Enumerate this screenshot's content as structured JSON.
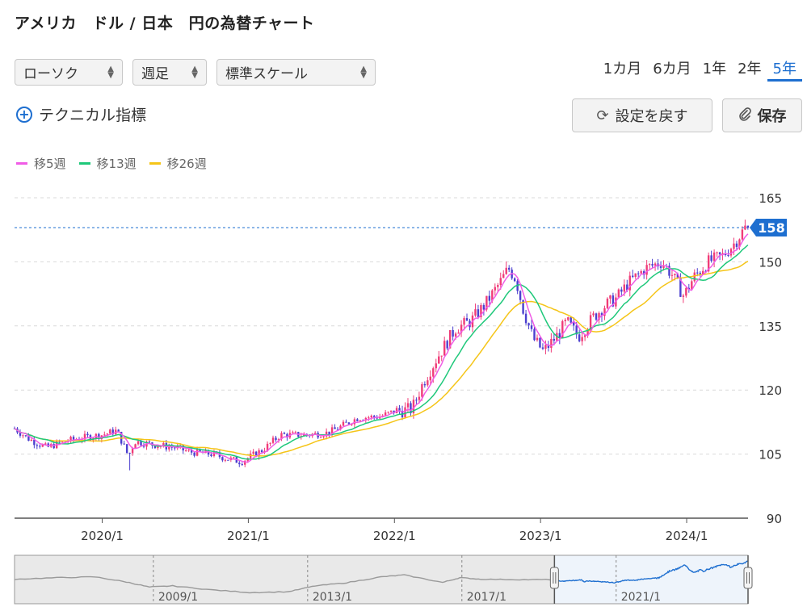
{
  "header": {
    "title": "アメリカ　ドル / 日本　円の為替チャート"
  },
  "controls": {
    "chart_type": "ローソク",
    "interval": "週足",
    "scale": "標準スケール",
    "periods": [
      "1カ月",
      "6カ月",
      "1年",
      "2年",
      "5年"
    ],
    "active_period": "5年",
    "technical_label": "テクニカル指標",
    "reset_label": "設定を戻す",
    "save_label": "保存"
  },
  "colors": {
    "up": "#f03c78",
    "down": "#4b3fcf",
    "ma5": "#f05ce6",
    "ma13": "#1ec87a",
    "ma26": "#f5c518",
    "accent": "#1e6fd0"
  },
  "chart_data": {
    "type": "candlestick",
    "title": "アメリカ　ドル / 日本　円の為替チャート",
    "ylim": [
      90,
      165
    ],
    "y_ticks": [
      90,
      105,
      120,
      135,
      150,
      165
    ],
    "x_tick_labels": [
      "2020/1",
      "2021/1",
      "2022/1",
      "2023/1",
      "2024/1"
    ],
    "x_tick_years": [
      2020,
      2021,
      2022,
      2023,
      2024
    ],
    "x_range": [
      2019.4,
      2024.42
    ],
    "current_value": 158,
    "current_label": "158",
    "legend": [
      {
        "name": "移5週",
        "color": "#f05ce6"
      },
      {
        "name": "移13週",
        "color": "#1ec87a"
      },
      {
        "name": "移26週",
        "color": "#f5c518"
      }
    ],
    "series_path": [
      [
        2019.4,
        111.0
      ],
      [
        2019.5,
        108.5
      ],
      [
        2019.62,
        106.5
      ],
      [
        2019.72,
        107.8
      ],
      [
        2019.86,
        108.8
      ],
      [
        2020.0,
        109.5
      ],
      [
        2020.1,
        110.5
      ],
      [
        2020.18,
        104.5
      ],
      [
        2020.22,
        108.0
      ],
      [
        2020.35,
        107.2
      ],
      [
        2020.5,
        106.5
      ],
      [
        2020.6,
        105.5
      ],
      [
        2020.75,
        105.0
      ],
      [
        2020.85,
        104.0
      ],
      [
        2020.95,
        103.2
      ],
      [
        2021.1,
        106.0
      ],
      [
        2021.22,
        109.5
      ],
      [
        2021.4,
        109.5
      ],
      [
        2021.55,
        110.0
      ],
      [
        2021.75,
        113.5
      ],
      [
        2021.9,
        113.8
      ],
      [
        2022.0,
        115.0
      ],
      [
        2022.12,
        115.5
      ],
      [
        2022.2,
        122.0
      ],
      [
        2022.3,
        128.0
      ],
      [
        2022.42,
        134.5
      ],
      [
        2022.52,
        136.0
      ],
      [
        2022.62,
        140.0
      ],
      [
        2022.72,
        145.0
      ],
      [
        2022.78,
        148.5
      ],
      [
        2022.83,
        146.0
      ],
      [
        2022.88,
        139.0
      ],
      [
        2022.95,
        132.0
      ],
      [
        2023.02,
        129.0
      ],
      [
        2023.12,
        133.0
      ],
      [
        2023.18,
        136.0
      ],
      [
        2023.26,
        132.5
      ],
      [
        2023.36,
        137.0
      ],
      [
        2023.45,
        140.0
      ],
      [
        2023.52,
        141.5
      ],
      [
        2023.6,
        145.0
      ],
      [
        2023.72,
        148.5
      ],
      [
        2023.83,
        150.0
      ],
      [
        2023.9,
        147.0
      ],
      [
        2023.98,
        142.0
      ],
      [
        2024.05,
        146.5
      ],
      [
        2024.15,
        150.0
      ],
      [
        2024.25,
        151.5
      ],
      [
        2024.33,
        154.5
      ],
      [
        2024.4,
        158.0
      ]
    ],
    "navigator": {
      "x_tick_labels": [
        "2009/1",
        "2013/1",
        "2017/1",
        "2021/1"
      ],
      "x_tick_years": [
        2009,
        2013,
        2017,
        2021
      ],
      "x_range": [
        2005.4,
        2024.42
      ],
      "selection_start": 2019.4,
      "history_path": [
        [
          2005.4,
          112
        ],
        [
          2006.5,
          116
        ],
        [
          2007.5,
          118
        ],
        [
          2008.3,
          105
        ],
        [
          2008.9,
          92
        ],
        [
          2009.5,
          95
        ],
        [
          2010.5,
          85
        ],
        [
          2011.5,
          78
        ],
        [
          2012.5,
          80
        ],
        [
          2013.2,
          95
        ],
        [
          2014.0,
          103
        ],
        [
          2014.9,
          118
        ],
        [
          2015.5,
          123
        ],
        [
          2016.5,
          104
        ],
        [
          2016.95,
          116
        ],
        [
          2017.5,
          112
        ],
        [
          2018.5,
          111
        ],
        [
          2019.4,
          111
        ]
      ]
    }
  }
}
